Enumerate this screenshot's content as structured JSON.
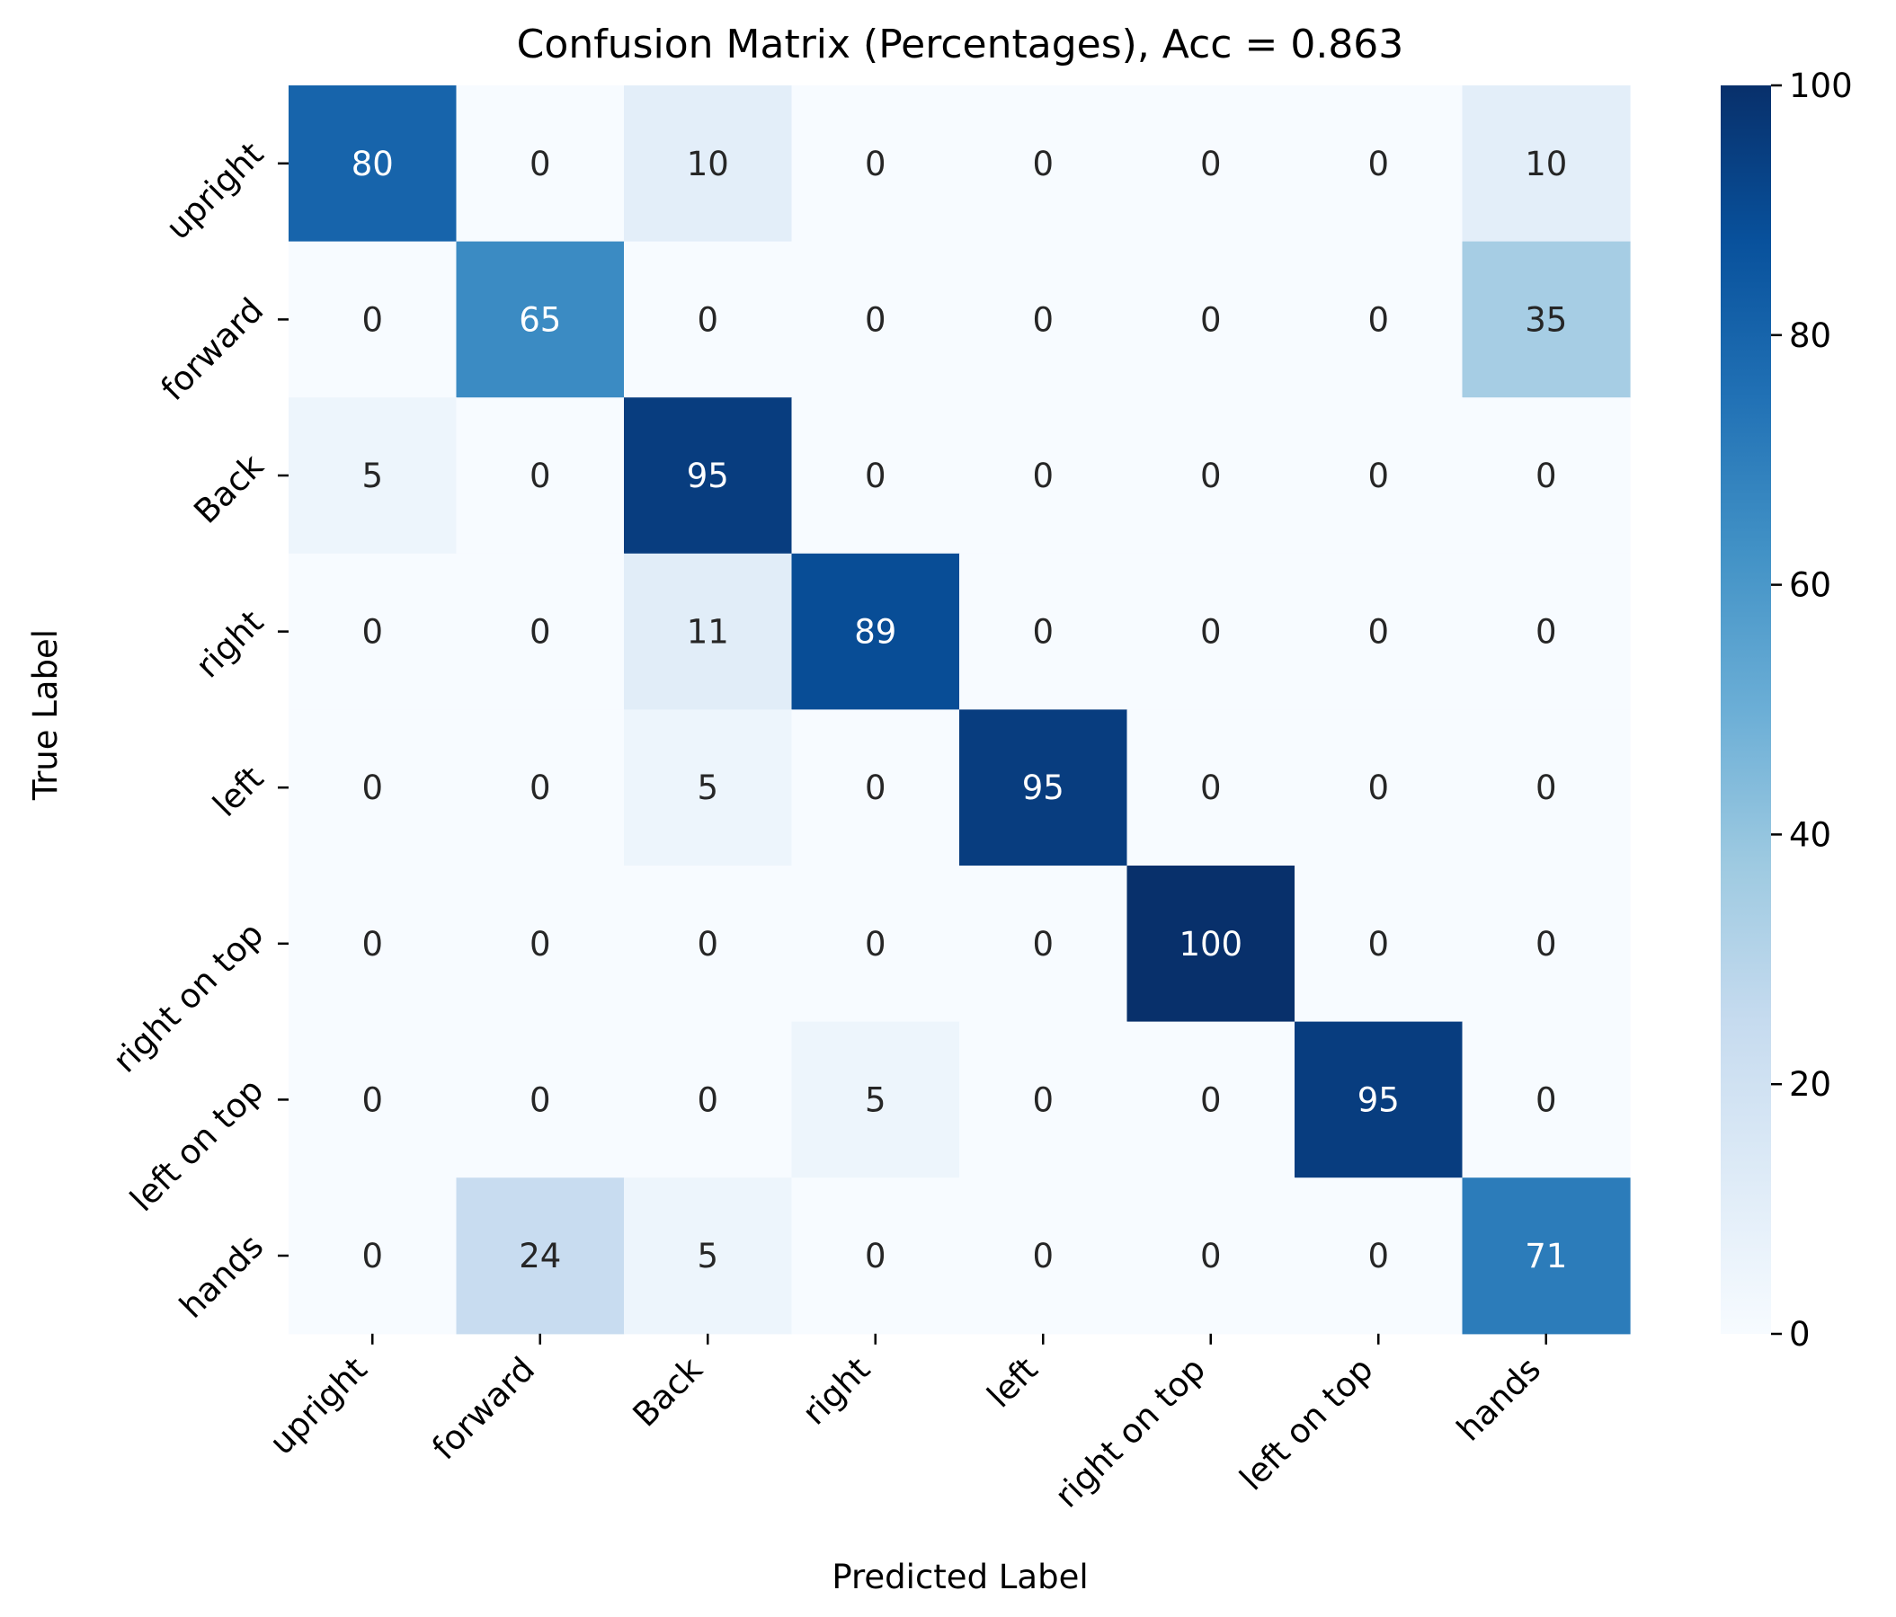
{
  "chart_data": {
    "type": "heatmap",
    "title": "Confusion Matrix (Percentages), Acc = 0.863",
    "xlabel": "Predicted Label",
    "ylabel": "True Label",
    "x_categories": [
      "upright",
      "forward",
      "Back",
      "right",
      "left",
      "right on top",
      "left on top",
      "hands"
    ],
    "y_categories": [
      "upright",
      "forward",
      "Back",
      "right",
      "left",
      "right on top",
      "left on top",
      "hands"
    ],
    "values": [
      [
        80,
        0,
        10,
        0,
        0,
        0,
        0,
        10
      ],
      [
        0,
        65,
        0,
        0,
        0,
        0,
        0,
        35
      ],
      [
        5,
        0,
        95,
        0,
        0,
        0,
        0,
        0
      ],
      [
        0,
        0,
        11,
        89,
        0,
        0,
        0,
        0
      ],
      [
        0,
        0,
        5,
        0,
        95,
        0,
        0,
        0
      ],
      [
        0,
        0,
        0,
        0,
        0,
        100,
        0,
        0
      ],
      [
        0,
        0,
        0,
        5,
        0,
        0,
        95,
        0
      ],
      [
        0,
        24,
        5,
        0,
        0,
        0,
        0,
        71
      ]
    ],
    "colorbar": {
      "range": [
        0,
        100
      ],
      "ticks": [
        "0",
        "20",
        "40",
        "60",
        "80",
        "100"
      ],
      "colormap": "Blues"
    }
  }
}
